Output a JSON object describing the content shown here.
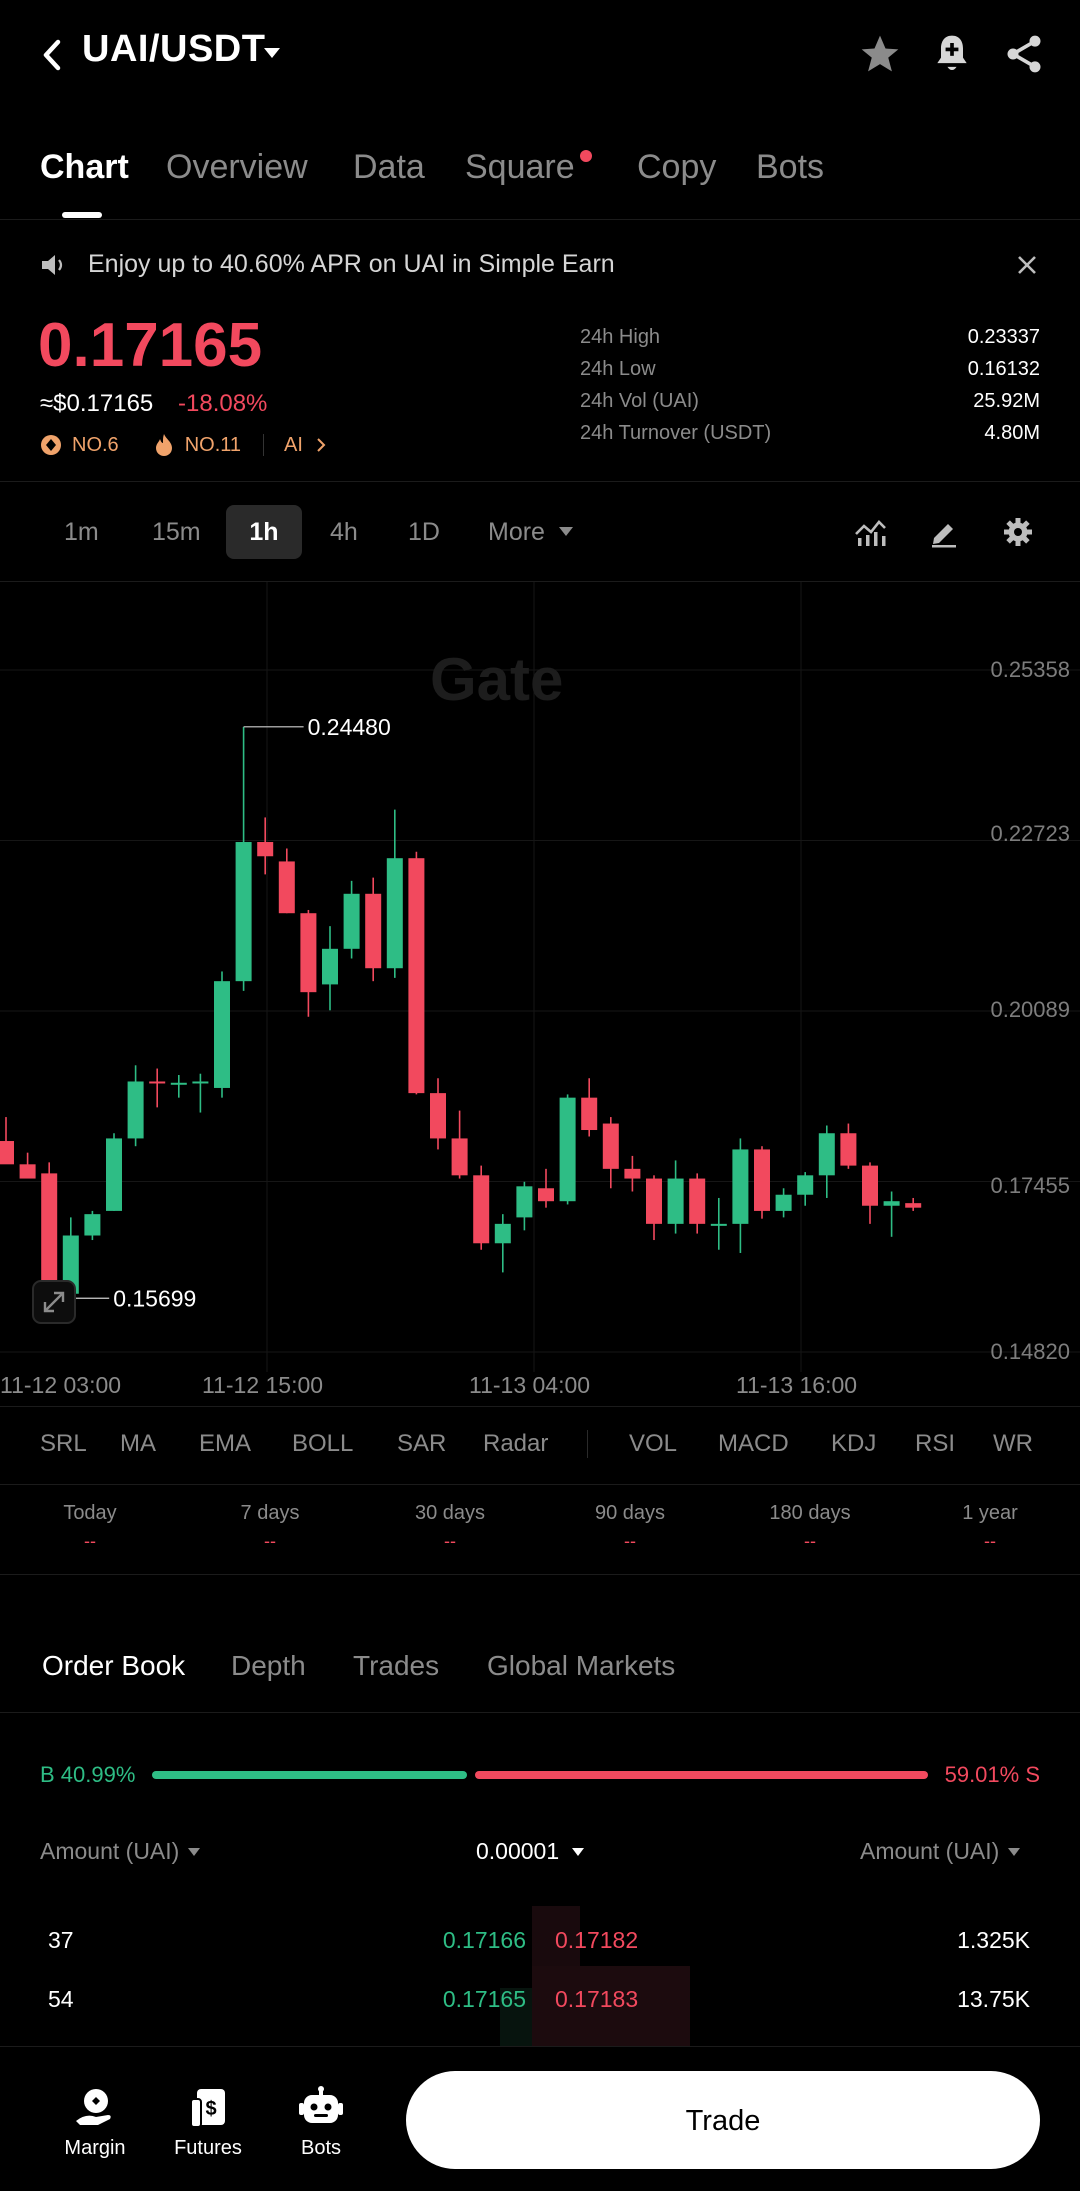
{
  "header": {
    "pair": "UAI/USDT",
    "icons": [
      "back-icon",
      "caret-down-icon",
      "star-icon",
      "bell-plus-icon",
      "share-icon"
    ]
  },
  "tabs": [
    {
      "label": "Chart",
      "active": true
    },
    {
      "label": "Overview"
    },
    {
      "label": "Data"
    },
    {
      "label": "Square",
      "dot": true
    },
    {
      "label": "Copy"
    },
    {
      "label": "Bots"
    }
  ],
  "notice": {
    "text": "Enjoy up to 40.60% APR on UAI in Simple Earn"
  },
  "price": {
    "last": "0.17165",
    "fiat": "≈$0.17165",
    "change": "-18.08%",
    "badges": {
      "rank": "NO.6",
      "hot": "NO.11",
      "tag": "AI"
    }
  },
  "stats": [
    {
      "label": "24h High",
      "value": "0.23337"
    },
    {
      "label": "24h Low",
      "value": "0.16132"
    },
    {
      "label": "24h Vol (UAI)",
      "value": "25.92M"
    },
    {
      "label": "24h Turnover (USDT)",
      "value": "4.80M"
    }
  ],
  "intervals": [
    "1m",
    "15m",
    "1h",
    "4h",
    "1D",
    "More"
  ],
  "active_interval": "1h",
  "chart": {
    "watermark": "Gate",
    "high_label": "0.24480",
    "low_label": "0.15699",
    "price_axis": [
      "0.25358",
      "0.22723",
      "0.20089",
      "0.17455",
      "0.14820"
    ],
    "time_axis": [
      "11-12 03:00",
      "11-12 15:00",
      "11-13 04:00",
      "11-13 16:00"
    ]
  },
  "chart_data": {
    "type": "candlestick",
    "interval": "1h",
    "ylim": [
      0.1482,
      0.25358
    ],
    "candles": [
      {
        "o": 0.1808,
        "h": 0.1845,
        "l": 0.1778,
        "c": 0.1772
      },
      {
        "o": 0.1772,
        "h": 0.179,
        "l": 0.1752,
        "c": 0.175
      },
      {
        "o": 0.1758,
        "h": 0.1775,
        "l": 0.1565,
        "c": 0.156
      },
      {
        "o": 0.1572,
        "h": 0.169,
        "l": 0.1565,
        "c": 0.1662
      },
      {
        "o": 0.1662,
        "h": 0.17,
        "l": 0.1655,
        "c": 0.1695
      },
      {
        "o": 0.17,
        "h": 0.182,
        "l": 0.17,
        "c": 0.1812
      },
      {
        "o": 0.1812,
        "h": 0.1925,
        "l": 0.18,
        "c": 0.19
      },
      {
        "o": 0.19,
        "h": 0.192,
        "l": 0.186,
        "c": 0.1898
      },
      {
        "o": 0.1898,
        "h": 0.191,
        "l": 0.1875,
        "c": 0.1898
      },
      {
        "o": 0.1898,
        "h": 0.1912,
        "l": 0.1852,
        "c": 0.19
      },
      {
        "o": 0.189,
        "h": 0.207,
        "l": 0.1875,
        "c": 0.2055
      },
      {
        "o": 0.2055,
        "h": 0.2448,
        "l": 0.204,
        "c": 0.227
      },
      {
        "o": 0.227,
        "h": 0.2308,
        "l": 0.222,
        "c": 0.2248
      },
      {
        "o": 0.224,
        "h": 0.226,
        "l": 0.216,
        "c": 0.216
      },
      {
        "o": 0.216,
        "h": 0.2165,
        "l": 0.2,
        "c": 0.2038
      },
      {
        "o": 0.205,
        "h": 0.214,
        "l": 0.201,
        "c": 0.2105
      },
      {
        "o": 0.2105,
        "h": 0.221,
        "l": 0.209,
        "c": 0.219
      },
      {
        "o": 0.219,
        "h": 0.2215,
        "l": 0.2055,
        "c": 0.2075
      },
      {
        "o": 0.2075,
        "h": 0.232,
        "l": 0.206,
        "c": 0.2245
      },
      {
        "o": 0.2245,
        "h": 0.2255,
        "l": 0.188,
        "c": 0.1882
      },
      {
        "o": 0.1882,
        "h": 0.1905,
        "l": 0.1795,
        "c": 0.1812
      },
      {
        "o": 0.1812,
        "h": 0.1855,
        "l": 0.175,
        "c": 0.1755
      },
      {
        "o": 0.1755,
        "h": 0.177,
        "l": 0.164,
        "c": 0.165
      },
      {
        "o": 0.165,
        "h": 0.1695,
        "l": 0.1605,
        "c": 0.168
      },
      {
        "o": 0.169,
        "h": 0.1745,
        "l": 0.167,
        "c": 0.1738
      },
      {
        "o": 0.1735,
        "h": 0.1765,
        "l": 0.1705,
        "c": 0.1715
      },
      {
        "o": 0.1715,
        "h": 0.188,
        "l": 0.171,
        "c": 0.1875
      },
      {
        "o": 0.1875,
        "h": 0.1905,
        "l": 0.1815,
        "c": 0.1825
      },
      {
        "o": 0.1835,
        "h": 0.1845,
        "l": 0.1735,
        "c": 0.1765
      },
      {
        "o": 0.1765,
        "h": 0.1785,
        "l": 0.173,
        "c": 0.175
      },
      {
        "o": 0.175,
        "h": 0.1755,
        "l": 0.1655,
        "c": 0.168
      },
      {
        "o": 0.168,
        "h": 0.1778,
        "l": 0.1665,
        "c": 0.175
      },
      {
        "o": 0.175,
        "h": 0.1758,
        "l": 0.1665,
        "c": 0.168
      },
      {
        "o": 0.168,
        "h": 0.172,
        "l": 0.164,
        "c": 0.168
      },
      {
        "o": 0.168,
        "h": 0.1812,
        "l": 0.1635,
        "c": 0.1795
      },
      {
        "o": 0.1795,
        "h": 0.18,
        "l": 0.1688,
        "c": 0.17
      },
      {
        "o": 0.17,
        "h": 0.1735,
        "l": 0.169,
        "c": 0.1725
      },
      {
        "o": 0.1725,
        "h": 0.176,
        "l": 0.1708,
        "c": 0.1755
      },
      {
        "o": 0.1755,
        "h": 0.1832,
        "l": 0.172,
        "c": 0.182
      },
      {
        "o": 0.182,
        "h": 0.1835,
        "l": 0.1765,
        "c": 0.177
      },
      {
        "o": 0.177,
        "h": 0.1775,
        "l": 0.168,
        "c": 0.1708
      },
      {
        "o": 0.1708,
        "h": 0.173,
        "l": 0.166,
        "c": 0.1715
      },
      {
        "o": 0.1712,
        "h": 0.172,
        "l": 0.17,
        "c": 0.1705
      }
    ]
  },
  "indicators": [
    "SRL",
    "MA",
    "EMA",
    "BOLL",
    "SAR",
    "Radar",
    "VOL",
    "MACD",
    "KDJ",
    "RSI",
    "WR"
  ],
  "periods": [
    {
      "label": "Today",
      "value": "--"
    },
    {
      "label": "7 days",
      "value": "--"
    },
    {
      "label": "30 days",
      "value": "--"
    },
    {
      "label": "90 days",
      "value": "--"
    },
    {
      "label": "180 days",
      "value": "--"
    },
    {
      "label": "1 year",
      "value": "--"
    }
  ],
  "orderbook": {
    "tabs": [
      "Order Book",
      "Depth",
      "Trades",
      "Global Markets"
    ],
    "buy_ratio": "B 40.99%",
    "sell_ratio": "59.01% S",
    "buy_ratio_value": 0.4099,
    "amount_left": "Amount (UAI)",
    "precision": "0.00001",
    "amount_right": "Amount (UAI)",
    "rows": [
      {
        "bid_amount": "37",
        "bid_price": "0.17166",
        "ask_price": "0.17182",
        "ask_amount": "1.325K"
      },
      {
        "bid_amount": "54",
        "bid_price": "0.17165",
        "ask_price": "0.17183",
        "ask_amount": "13.75K"
      }
    ]
  },
  "bottom_nav": {
    "items": [
      {
        "label": "Margin",
        "icon": "margin-icon"
      },
      {
        "label": "Futures",
        "icon": "futures-icon"
      },
      {
        "label": "Bots",
        "icon": "bots-icon"
      }
    ],
    "trade_label": "Trade"
  },
  "colors": {
    "up": "#2ebd85",
    "down": "#f2495e",
    "bg": "#000000"
  }
}
